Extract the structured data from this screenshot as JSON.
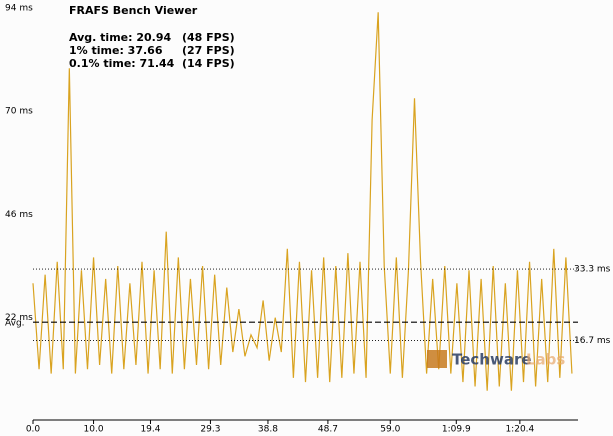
{
  "chart_data": {
    "type": "line",
    "title": "FRAFS Bench Viewer",
    "stats": [
      {
        "label": "Avg. time: 20.94",
        "fps": "(48 FPS)"
      },
      {
        "label": "1% time: 37.66",
        "fps": "(27 FPS)"
      },
      {
        "label": "0.1% time: 71.44",
        "fps": "(14 FPS)"
      }
    ],
    "watermark": {
      "name": "Techware",
      "suffix": "Labs"
    },
    "series": [
      {
        "color": "#d9a320",
        "x": [
          0,
          1,
          2,
          3,
          4,
          5,
          6,
          7,
          8,
          9,
          10,
          11,
          12,
          13,
          14,
          15,
          16,
          17,
          18,
          19,
          20,
          21,
          22,
          23,
          24,
          25,
          26,
          27,
          28,
          29,
          30,
          31,
          32,
          33,
          34,
          35,
          36,
          37,
          38,
          39,
          40,
          41,
          42,
          43,
          44,
          45,
          46,
          47,
          48,
          49,
          50,
          51,
          52,
          53,
          54,
          55,
          56,
          57,
          58,
          59,
          60,
          61,
          62,
          63,
          64,
          65,
          66,
          67,
          68,
          69,
          70,
          71,
          72,
          73,
          74,
          75,
          76,
          77,
          78,
          79,
          80,
          81,
          82,
          83,
          84,
          85,
          86,
          87,
          88,
          89
        ],
        "values": [
          30,
          10,
          32,
          9,
          35,
          10,
          80,
          9,
          33,
          10,
          36,
          11,
          31,
          9,
          34,
          10,
          30,
          11,
          35,
          9,
          33,
          10,
          42,
          9,
          36,
          10,
          31,
          11,
          34,
          10,
          32,
          11,
          29,
          14,
          24,
          13,
          18,
          15,
          26,
          12,
          22,
          14,
          38,
          8,
          35,
          7,
          33,
          8,
          36,
          7,
          34,
          8,
          37,
          9,
          35,
          8,
          68,
          93,
          34,
          9,
          36,
          8,
          33,
          73,
          35,
          9,
          31,
          10,
          34,
          9,
          30,
          7,
          33,
          6,
          31,
          5,
          34,
          6,
          30,
          5,
          33,
          7,
          35,
          6,
          31,
          7,
          38,
          8,
          36,
          9
        ]
      }
    ],
    "ref_lines": [
      {
        "value": 33.3,
        "label": "33.3 ms",
        "style": "dotted",
        "side": "right"
      },
      {
        "value": 16.7,
        "label": "16.7 ms",
        "style": "dotted",
        "side": "right"
      },
      {
        "value": 20.94,
        "label": "Avg.",
        "style": "dashed",
        "side": "left"
      }
    ],
    "xlim": [
      0,
      90
    ],
    "xticks": [
      {
        "value": 0,
        "label": "0.0"
      },
      {
        "value": 10,
        "label": "10.0"
      },
      19.4,
      29.3,
      38.8,
      48.7,
      {
        "value": 59,
        "label": "59.0"
      },
      {
        "value": 69.9,
        "label": "1:09.9"
      },
      {
        "value": 80.4,
        "label": "1:20.4"
      }
    ],
    "ylim": [
      -1.8,
      94
    ],
    "yticks": [
      {
        "value": 94,
        "label": "94 ms"
      },
      {
        "value": 70,
        "label": "70 ms"
      },
      {
        "value": 46,
        "label": "46 ms"
      },
      {
        "value": 22,
        "label": "22 ms"
      }
    ]
  }
}
